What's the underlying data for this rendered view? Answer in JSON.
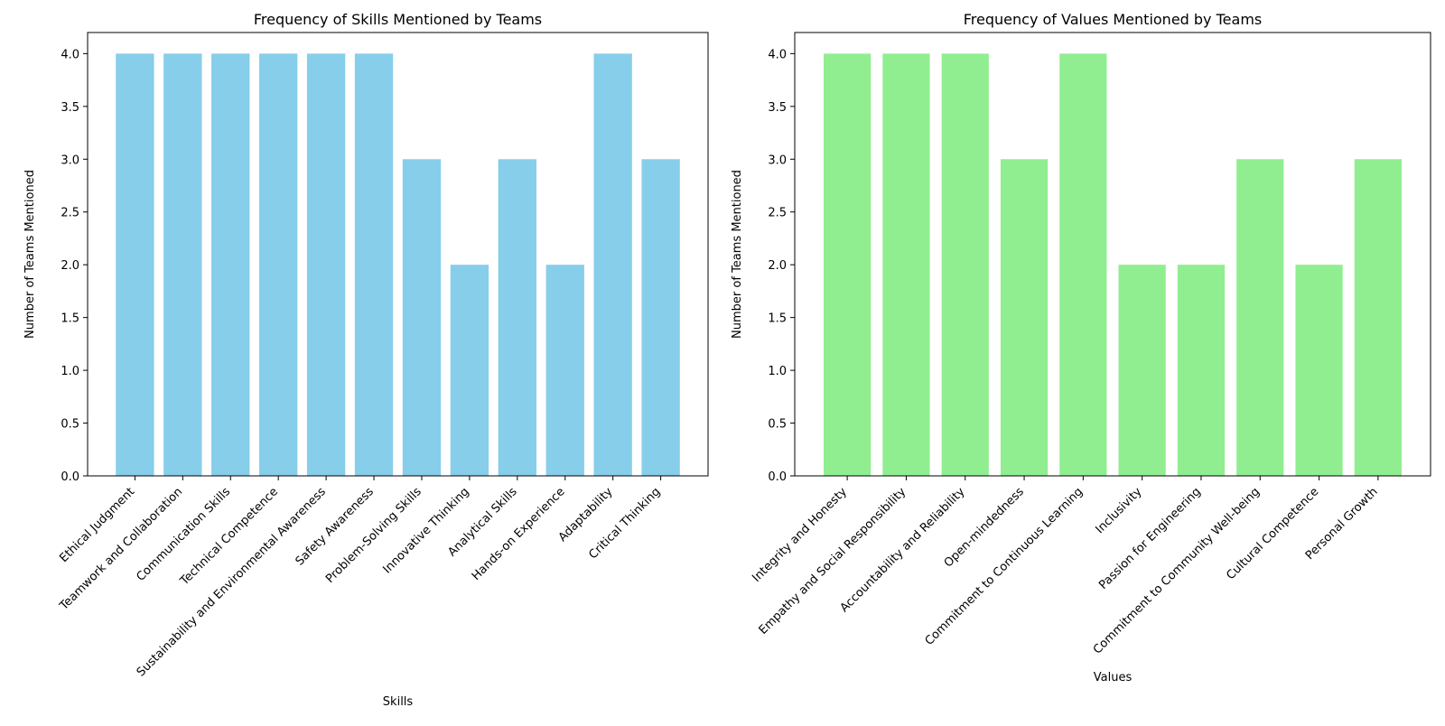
{
  "chart_data": [
    {
      "type": "bar",
      "title": "Frequency of Skills Mentioned by Teams",
      "xlabel": "Skills",
      "ylabel": "Number of Teams Mentioned",
      "ylim": [
        0,
        4.2
      ],
      "yticks": [
        "0.0",
        "0.5",
        "1.0",
        "1.5",
        "2.0",
        "2.5",
        "3.0",
        "3.5",
        "4.0"
      ],
      "categories": [
        "Ethical Judgment",
        "Teamwork and Collaboration",
        "Communication Skills",
        "Technical Competence",
        "Sustainability and Environmental Awareness",
        "Safety Awareness",
        "Problem-Solving Skills",
        "Innovative Thinking",
        "Analytical Skills",
        "Hands-on Experience",
        "Adaptability",
        "Critical Thinking"
      ],
      "values": [
        4,
        4,
        4,
        4,
        4,
        4,
        3,
        2,
        3,
        2,
        4,
        3
      ],
      "color": "#87CEEB"
    },
    {
      "type": "bar",
      "title": "Frequency of Values Mentioned by Teams",
      "xlabel": "Values",
      "ylabel": "Number of Teams Mentioned",
      "ylim": [
        0,
        4.2
      ],
      "yticks": [
        "0.0",
        "0.5",
        "1.0",
        "1.5",
        "2.0",
        "2.5",
        "3.0",
        "3.5",
        "4.0"
      ],
      "categories": [
        "Integrity and Honesty",
        "Empathy and Social Responsibility",
        "Accountability and Reliability",
        "Open-mindedness",
        "Commitment to Continuous Learning",
        "Inclusivity",
        "Passion for Engineering",
        "Commitment to Community Well-being",
        "Cultural Competence",
        "Personal Growth"
      ],
      "values": [
        4,
        4,
        4,
        3,
        4,
        2,
        2,
        3,
        2,
        3
      ],
      "color": "#90EE90"
    }
  ]
}
